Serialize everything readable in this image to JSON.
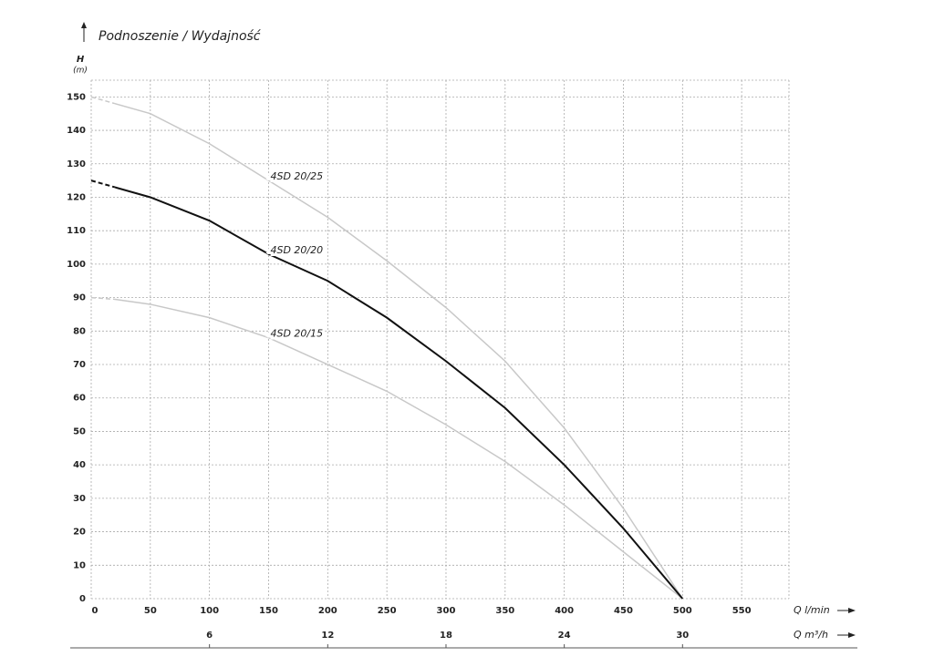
{
  "chart_data": {
    "type": "line",
    "title": "Podnoszenie / Wydajność",
    "y_label": "H",
    "y_unit": "(m)",
    "x_label": "Q l/min",
    "x2_label": "Q m³/h",
    "x": [
      0,
      20,
      50,
      100,
      150,
      200,
      250,
      300,
      350,
      400,
      450,
      500
    ],
    "xlim": [
      0,
      590
    ],
    "xticks": [
      0,
      50,
      100,
      150,
      200,
      250,
      300,
      350,
      400,
      450,
      500,
      550
    ],
    "x2lim": [
      0,
      35.4
    ],
    "x2ticks": [
      6,
      12,
      18,
      24,
      30
    ],
    "ylim": [
      0,
      155
    ],
    "yticks": [
      0,
      10,
      20,
      30,
      40,
      50,
      60,
      70,
      80,
      90,
      100,
      110,
      120,
      130,
      140,
      150
    ],
    "grid": true,
    "dashed_to_x": 20,
    "series": [
      {
        "name": "4SD 20/25",
        "color": "#c8c8c8",
        "values": [
          150,
          148,
          145,
          136,
          125,
          114,
          101,
          87,
          71,
          51,
          27,
          0
        ]
      },
      {
        "name": "4SD 20/15",
        "color": "#c8c8c8",
        "values": [
          90,
          89.5,
          88,
          84,
          78,
          70,
          62,
          52,
          41,
          28,
          14,
          0
        ]
      },
      {
        "name": "4SD 20/20",
        "color": "#111111",
        "values": [
          125,
          123,
          120,
          113,
          103,
          95,
          84,
          71,
          57,
          40,
          21,
          0
        ]
      }
    ]
  }
}
